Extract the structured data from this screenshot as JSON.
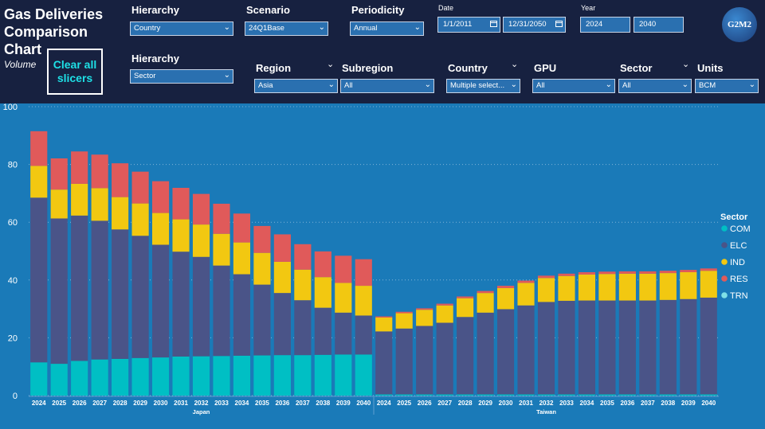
{
  "header": {
    "title": "Gas Deliveries Comparison Chart",
    "subtitle": "Volume",
    "clear_button": "Clear all slicers",
    "logo": "G2M2"
  },
  "slicers": {
    "hierarchy1": {
      "label": "Hierarchy",
      "value": "Country"
    },
    "scenario": {
      "label": "Scenario",
      "value": "24Q1Base"
    },
    "periodicity": {
      "label": "Periodicity",
      "value": "Annual"
    },
    "date": {
      "label": "Date",
      "start": "1/1/2011",
      "end": "12/31/2050"
    },
    "year": {
      "label": "Year",
      "start": "2024",
      "end": "2040"
    },
    "hierarchy2": {
      "label": "Hierarchy",
      "value": "Sector"
    },
    "region": {
      "label": "Region",
      "value": "Asia"
    },
    "subregion": {
      "label": "Subregion",
      "value": "All"
    },
    "country": {
      "label": "Country",
      "value": "Multiple select..."
    },
    "gpu": {
      "label": "GPU",
      "value": "All"
    },
    "sector": {
      "label": "Sector",
      "value": "All"
    },
    "units": {
      "label": "Units",
      "value": "BCM"
    }
  },
  "chart_data": {
    "type": "bar",
    "stacked": true,
    "ylim": [
      0,
      100
    ],
    "yticks": [
      0,
      20,
      40,
      60,
      80,
      100
    ],
    "grid": true,
    "legend_position": "right",
    "legend_title": "Sector",
    "groups": [
      {
        "name": "Japan",
        "categories": [
          "2024",
          "2025",
          "2026",
          "2027",
          "2028",
          "2029",
          "2030",
          "2031",
          "2032",
          "2033",
          "2034",
          "2035",
          "2036",
          "2037",
          "2038",
          "2039",
          "2040"
        ]
      },
      {
        "name": "Taiwan",
        "categories": [
          "2024",
          "2025",
          "2026",
          "2027",
          "2028",
          "2029",
          "2030",
          "2031",
          "2032",
          "2033",
          "2034",
          "2035",
          "2036",
          "2037",
          "2038",
          "2039",
          "2040"
        ]
      }
    ],
    "series": [
      {
        "name": "COM",
        "color": "#00bfc4",
        "values": [
          11.5,
          11,
          12,
          12.5,
          12.7,
          13,
          13.2,
          13.5,
          13.6,
          13.7,
          13.8,
          13.9,
          14,
          14,
          14.1,
          14.2,
          14.2,
          0.4,
          0.4,
          0.4,
          0.4,
          0.4,
          0.4,
          0.4,
          0.4,
          0.4,
          0.4,
          0.4,
          0.4,
          0.4,
          0.4,
          0.4,
          0.4,
          0.4
        ]
      },
      {
        "name": "ELC",
        "color": "#4a5488",
        "values": [
          57,
          50.3,
          50.3,
          48,
          44.8,
          42.3,
          39,
          36.3,
          34.4,
          31.3,
          28.2,
          24.5,
          21.5,
          19,
          16.3,
          14.5,
          13.5,
          21.8,
          22.8,
          23.7,
          24.8,
          26.8,
          28.3,
          29.5,
          30.8,
          32,
          32.4,
          32.5,
          32.5,
          32.5,
          32.5,
          32.7,
          33,
          33.5
        ]
      },
      {
        "name": "IND",
        "color": "#f2c811",
        "values": [
          11,
          10,
          11,
          11.3,
          11.2,
          11.2,
          11,
          11.2,
          11.2,
          11,
          11,
          11,
          10.8,
          10.6,
          10.6,
          10.3,
          10.3,
          4.8,
          5.3,
          5.6,
          6,
          6.5,
          6.8,
          7.3,
          7.8,
          8.3,
          8.6,
          9,
          9.2,
          9.3,
          9.3,
          9.3,
          9.3,
          9.3
        ]
      },
      {
        "name": "RES",
        "color": "#e05a5a",
        "values": [
          12,
          10.8,
          11.2,
          11.6,
          11.7,
          11,
          11,
          10.9,
          10.6,
          10.4,
          10,
          9.3,
          9.5,
          8.8,
          8.9,
          9.4,
          9.2,
          0.4,
          0.5,
          0.5,
          0.6,
          0.6,
          0.7,
          0.8,
          0.8,
          0.8,
          0.8,
          0.8,
          0.8,
          0.8,
          0.8,
          0.8,
          0.8,
          0.8
        ]
      },
      {
        "name": "TRN",
        "color": "#7fe0e6",
        "values": [
          0,
          0,
          0,
          0,
          0,
          0,
          0,
          0,
          0,
          0,
          0,
          0,
          0,
          0,
          0,
          0,
          0,
          0,
          0,
          0,
          0,
          0,
          0,
          0,
          0,
          0,
          0,
          0,
          0,
          0,
          0,
          0,
          0,
          0
        ]
      }
    ]
  }
}
